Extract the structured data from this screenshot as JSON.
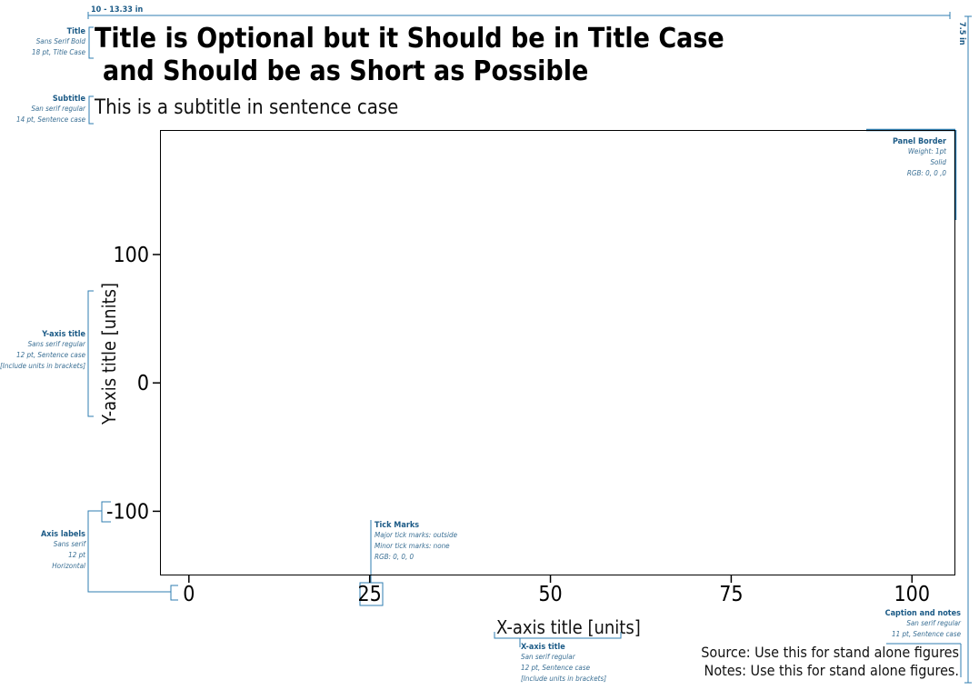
{
  "dims": {
    "width_label": "10 - 13.33 in",
    "height_label": "7.5 in"
  },
  "chart_data": {
    "type": "scatter",
    "title_line1": "Title is Optional but it Should be in Title Case",
    "title_line2": "and Should be as Short as Possible",
    "subtitle": "This is a subtitle in sentence case",
    "xlabel": "X-axis title [units]",
    "ylabel": "Y-axis title [units]",
    "xlim": [
      -4,
      106
    ],
    "ylim": [
      -150,
      197
    ],
    "xticks": [
      0,
      25,
      50,
      75,
      100
    ],
    "yticks": [
      100,
      0,
      -100
    ],
    "x": [],
    "y": [],
    "grid": false
  },
  "caption": {
    "source": "Source: Use this for stand alone figures",
    "notes": "Notes: Use this for stand alone figures."
  },
  "annotations": {
    "title": {
      "head": "Title",
      "lines": [
        "Sans Serif Bold",
        "18 pt, Title Case"
      ]
    },
    "subtitle": {
      "head": "Subtitle",
      "lines": [
        "San serif regular",
        "14 pt, Sentence case"
      ]
    },
    "yaxis": {
      "head": "Y-axis title",
      "lines": [
        "Sans serif regular",
        "12 pt, Sentence case",
        "[Include units in brackets]"
      ]
    },
    "axislabels": {
      "head": "Axis labels",
      "lines": [
        "Sans serif",
        "12 pt",
        "Horizontal"
      ]
    },
    "ticks": {
      "head": "Tick Marks",
      "lines": [
        "Major tick marks: outside",
        "Minor tick marks: none",
        "RGB: 0, 0, 0"
      ]
    },
    "panel": {
      "head": "Panel Border",
      "lines": [
        "Weight: 1pt",
        "Solid",
        "RGB: 0, 0 ,0"
      ]
    },
    "xaxis": {
      "head": "X-axis title",
      "lines": [
        "San serif regular",
        "12 pt, Sentence case",
        "[Include units in brackets]"
      ]
    },
    "caption": {
      "head": "Caption and notes",
      "lines": [
        "San serif regular",
        "11 pt, Sentence case"
      ]
    }
  },
  "colors": {
    "annotation": "#1b5a86",
    "axis": "#000000"
  }
}
